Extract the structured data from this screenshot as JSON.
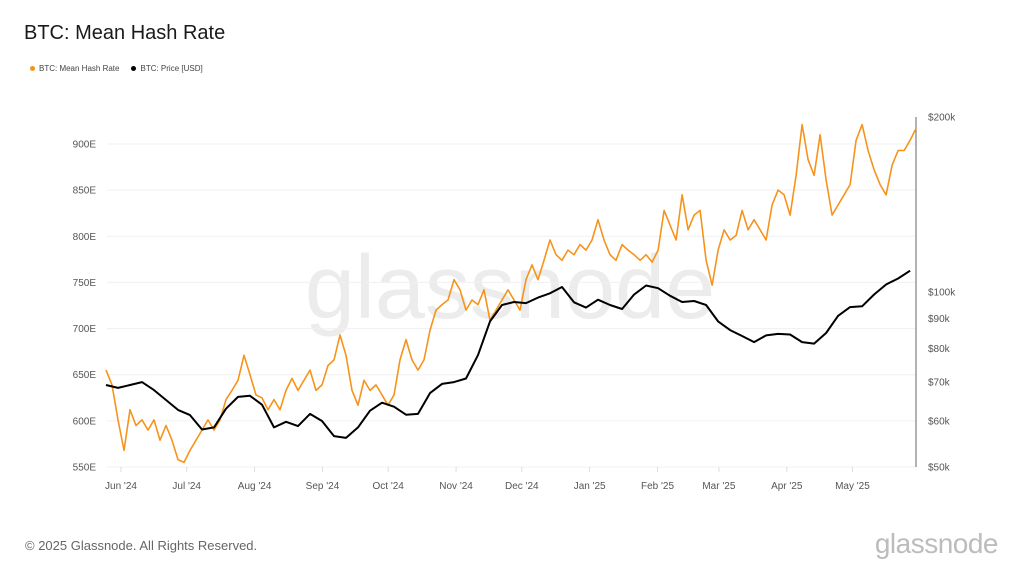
{
  "header": {
    "title": "BTC: Mean Hash Rate"
  },
  "footer": {
    "copyright": "© 2025 Glassnode. All Rights Reserved.",
    "logo": "glassnode"
  },
  "watermark": "glassnode",
  "chart_data": {
    "type": "line",
    "title": "BTC: Mean Hash Rate",
    "x_unit": "days since Jun 1 2024",
    "x_ticks": [
      {
        "label": "Jun '24",
        "day": 0
      },
      {
        "label": "Jul '24",
        "day": 30
      },
      {
        "label": "Aug '24",
        "day": 61
      },
      {
        "label": "Sep '24",
        "day": 92
      },
      {
        "label": "Oct '24",
        "day": 122
      },
      {
        "label": "Nov '24",
        "day": 153
      },
      {
        "label": "Dec '24",
        "day": 183
      },
      {
        "label": "Jan '25",
        "day": 214
      },
      {
        "label": "Feb '25",
        "day": 245
      },
      {
        "label": "Mar '25",
        "day": 273
      },
      {
        "label": "Apr '25",
        "day": 304
      },
      {
        "label": "May '25",
        "day": 334
      }
    ],
    "xlim": [
      -6.4,
      362.5
    ],
    "left_axis": {
      "ylim": [
        550,
        930
      ],
      "ticks": [
        550,
        600,
        650,
        700,
        750,
        800,
        850,
        900
      ],
      "tick_labels": [
        "550E",
        "600E",
        "650E",
        "700E",
        "750E",
        "800E",
        "850E",
        "900E"
      ]
    },
    "right_axis": {
      "scale": "log",
      "ylim": [
        50,
        200
      ],
      "ticks": [
        50,
        60,
        70,
        80,
        90,
        100,
        200
      ],
      "tick_labels": [
        "$50k",
        "$60k",
        "$70k",
        "$80k",
        "$90k",
        "$100k",
        "$200k"
      ]
    },
    "grid": true,
    "legend_position": "top-left",
    "series": [
      {
        "name": "BTC: Mean Hash Rate",
        "color": "#f7931a",
        "axis": "left",
        "start_day": -6.85,
        "step_days": 2.74,
        "values": [
          655,
          639,
          601,
          568,
          612,
          595,
          601,
          590,
          601,
          579,
          595,
          579,
          558,
          555,
          568,
          579,
          590,
          601,
          590,
          601,
          623,
          633,
          644,
          671,
          650,
          628,
          625,
          612,
          623,
          612,
          633,
          646,
          633,
          644,
          655,
          633,
          639,
          660,
          666,
          693,
          671,
          633,
          617,
          644,
          633,
          639,
          628,
          617,
          628,
          666,
          688,
          666,
          655,
          666,
          698,
          720,
          726,
          731,
          753,
          742,
          720,
          731,
          726,
          742,
          709,
          720,
          731,
          742,
          731,
          720,
          753,
          769,
          753,
          774,
          796,
          780,
          774,
          785,
          780,
          791,
          785,
          796,
          818,
          796,
          780,
          774,
          791,
          785,
          780,
          774,
          780,
          772,
          785,
          828,
          812,
          796,
          845,
          807,
          823,
          828,
          774,
          747,
          785,
          807,
          796,
          801,
          828,
          807,
          818,
          807,
          796,
          834,
          850,
          845,
          823,
          866,
          921,
          883,
          866,
          910,
          861,
          823,
          834,
          845,
          856,
          904,
          921,
          893,
          872,
          856,
          845,
          877,
          893,
          893,
          904,
          917
        ]
      },
      {
        "name": "BTC: Price [USD]",
        "color": "#000000",
        "axis": "right",
        "unit": "$k",
        "start_day": -6.85,
        "step_days": 5.48,
        "values": [
          69.2,
          68.4,
          69.2,
          70.0,
          67.8,
          65.2,
          62.7,
          61.4,
          58.0,
          58.5,
          63.0,
          66.0,
          66.3,
          64.0,
          58.5,
          59.8,
          58.8,
          61.7,
          60.0,
          56.5,
          56.1,
          58.5,
          62.5,
          64.5,
          63.5,
          61.5,
          61.7,
          67.0,
          69.5,
          70.0,
          71.0,
          77.9,
          89.0,
          95.0,
          96.1,
          95.7,
          97.8,
          99.5,
          102.0,
          96.0,
          94.0,
          97.0,
          95.0,
          93.5,
          99.0,
          102.6,
          101.5,
          98.5,
          96.1,
          96.5,
          95.0,
          89.0,
          86.0,
          84.0,
          82.0,
          84.2,
          84.7,
          84.5,
          82.0,
          81.5,
          85.0,
          91.0,
          94.2,
          94.5,
          99.0,
          103.0,
          105.5,
          108.8
        ]
      }
    ]
  }
}
